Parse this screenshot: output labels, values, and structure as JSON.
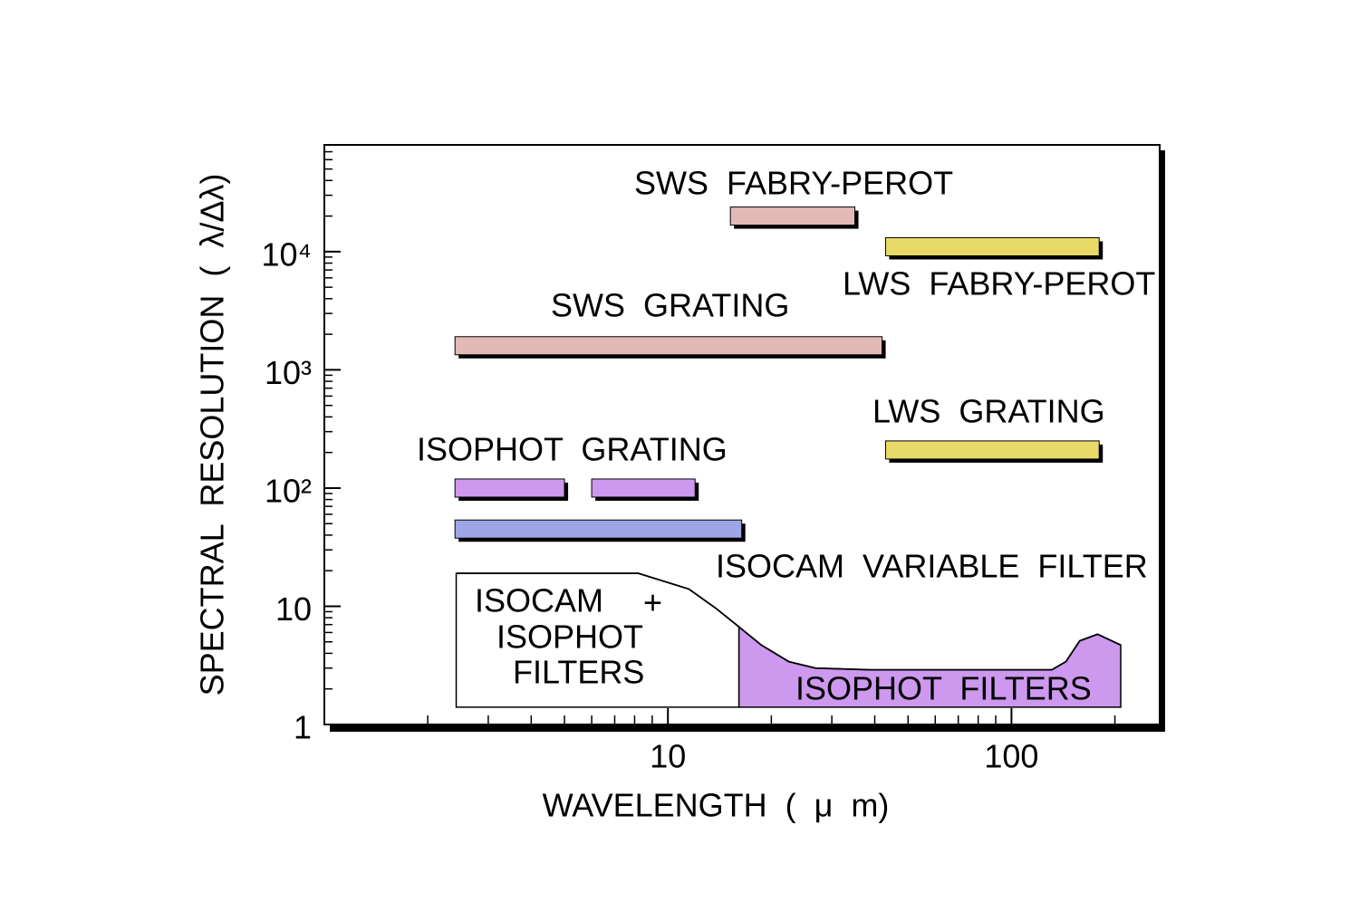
{
  "chart_data": {
    "type": "range-bar",
    "xlabel": "WAVELENGTH ( μ m)",
    "ylabel": "SPECTRAL RESOLUTION ( λ/Δλ)",
    "xscale": "log",
    "yscale": "log",
    "xlim": [
      1,
      270
    ],
    "ylim": [
      1,
      80000
    ],
    "xticks": [
      10,
      100
    ],
    "yticks": [
      1,
      10,
      {
        "value": 100,
        "label": "10²"
      },
      {
        "value": 1000,
        "label": "10³"
      },
      {
        "value": 10000,
        "label": "10⁴"
      }
    ],
    "xminorticks": [
      2,
      3,
      4,
      5,
      6,
      7,
      8,
      9,
      20,
      30,
      40,
      50,
      60,
      70,
      80,
      90,
      200
    ],
    "yminorticks": [
      2,
      3,
      4,
      5,
      6,
      7,
      8,
      9,
      20,
      30,
      40,
      50,
      60,
      70,
      80,
      90,
      200,
      300,
      400,
      500,
      600,
      700,
      800,
      900,
      2000,
      3000,
      4000,
      5000,
      6000,
      7000,
      8000,
      9000,
      20000,
      30000,
      40000,
      50000,
      60000,
      70000
    ],
    "bars": [
      {
        "value": 20000,
        "x": [
          15.2,
          35
        ],
        "color": "#e3b9b7"
      },
      {
        "value": 11000,
        "x": [
          43,
          180
        ],
        "color": "#e8da66"
      },
      {
        "value": 1600,
        "x": [
          2.4,
          42
        ],
        "color": "#e3b9b7"
      },
      {
        "value": 210,
        "x": [
          43,
          180
        ],
        "color": "#e8da66"
      },
      {
        "value": 100,
        "x": [
          2.4,
          5.0
        ],
        "color": "#cc99ee"
      },
      {
        "value": 100,
        "x": [
          6,
          12
        ],
        "color": "#cc99ee"
      },
      {
        "value": 45,
        "x": [
          2.4,
          16.4
        ],
        "color": "#9ea6e8"
      }
    ],
    "areas": [
      {
        "color": "#ffffff",
        "floor": 1.4,
        "x": [
          2.42,
          8.2,
          11.5,
          13.8,
          16.1
        ],
        "values": [
          19,
          19,
          14,
          9.6,
          6.7
        ]
      },
      {
        "color": "#cc99ee",
        "floor": 1.4,
        "x": [
          16.1,
          18.7,
          22.5,
          26.9,
          38.9,
          131,
          144,
          158,
          178,
          208
        ],
        "values": [
          6.7,
          4.7,
          3.4,
          3.0,
          2.9,
          2.9,
          3.4,
          5.1,
          5.8,
          4.7
        ]
      }
    ],
    "annotations": [
      "SWS FABRY-PEROT",
      "LWS FABRY-PEROT",
      "SWS GRATING",
      "LWS GRATING",
      "ISOPHOT GRATING",
      "ISOCAM VARIABLE FILTER",
      "ISOCAM",
      "+",
      "ISOPHOT",
      "FILTERS",
      "ISOPHOT FILTERS"
    ]
  }
}
